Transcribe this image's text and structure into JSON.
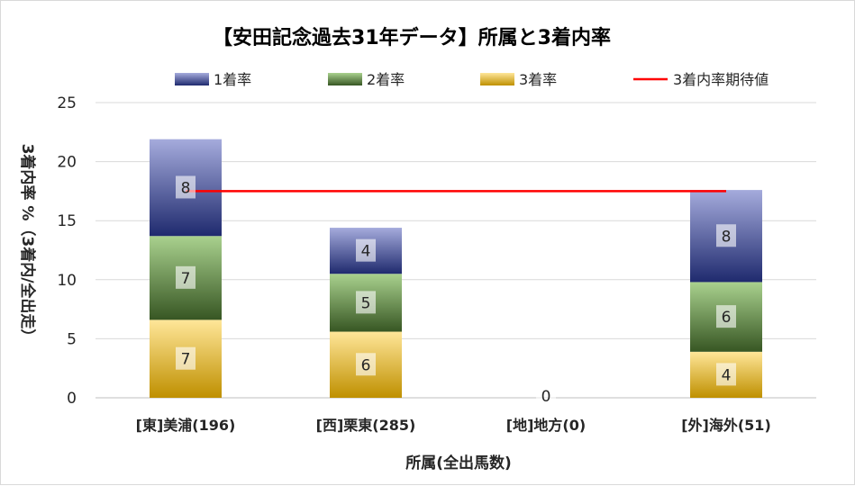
{
  "chart_data": {
    "type": "bar",
    "stacked": true,
    "title": "【安田記念過去31年データ】所属と3着内率",
    "xlabel": "所属(全出馬数)",
    "ylabel": "3着内率 %（3着内/全出走）",
    "ylim": [
      0,
      25
    ],
    "yticks": [
      "0",
      "5",
      "10",
      "15",
      "20",
      "25"
    ],
    "grid": true,
    "legend_position": "top",
    "categories": [
      "[東]美浦(196)",
      "[西]栗東(285)",
      "[地]地方(0)",
      "[外]海外(51)"
    ],
    "series": [
      {
        "name": "3着率",
        "values": [
          6.6,
          5.6,
          0,
          3.9
        ],
        "labels": [
          "7",
          "6",
          "0",
          "4"
        ],
        "color_top": "#ffe699",
        "color_bottom": "#bf9000"
      },
      {
        "name": "2着率",
        "values": [
          7.1,
          4.9,
          0,
          5.9
        ],
        "labels": [
          "7",
          "5",
          "",
          "6"
        ],
        "color_top": "#a9d18e",
        "color_bottom": "#375623"
      },
      {
        "name": "1着率",
        "values": [
          8.2,
          3.9,
          0,
          7.8
        ],
        "labels": [
          "8",
          "4",
          "",
          "8"
        ],
        "color_top": "#a5abdc",
        "color_bottom": "#1f2a6e"
      }
    ],
    "expected_line": {
      "name": "3着内率期待値",
      "value": 17.5,
      "color": "#ff0000"
    }
  }
}
